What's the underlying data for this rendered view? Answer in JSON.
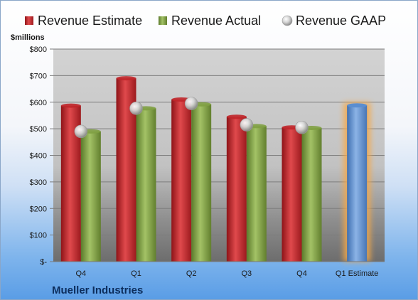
{
  "chart_data": {
    "type": "bar",
    "title": "",
    "ylabel": "$millions",
    "company": "Mueller Industries",
    "categories": [
      "Q4",
      "Q1",
      "Q2",
      "Q3",
      "Q4",
      "Q1 Estimate"
    ],
    "ylim": [
      0,
      800
    ],
    "yticks": [
      {
        "value": 0,
        "label": "$-"
      },
      {
        "value": 100,
        "label": "$100"
      },
      {
        "value": 200,
        "label": "$200"
      },
      {
        "value": 300,
        "label": "$300"
      },
      {
        "value": 400,
        "label": "$400"
      },
      {
        "value": 500,
        "label": "$500"
      },
      {
        "value": 600,
        "label": "$600"
      },
      {
        "value": 700,
        "label": "$700"
      },
      {
        "value": 800,
        "label": "$800"
      }
    ],
    "grid": true,
    "legend_position": "top",
    "series": [
      {
        "name": "Revenue Estimate",
        "kind": "bar",
        "color": "#c0262a",
        "values": [
          587,
          690,
          610,
          545,
          505,
          null
        ]
      },
      {
        "name": "Revenue Actual",
        "kind": "bar",
        "color": "#7fa043",
        "values": [
          490,
          577,
          592,
          510,
          503,
          null
        ]
      },
      {
        "name": "Revenue GAAP",
        "kind": "marker",
        "color": "#c8c8c8",
        "values": [
          490,
          577,
          595,
          515,
          505,
          null
        ]
      }
    ],
    "forecast": {
      "index": 5,
      "value": 588,
      "color": "#5b8ed0",
      "highlight": "#f5a94a"
    }
  }
}
